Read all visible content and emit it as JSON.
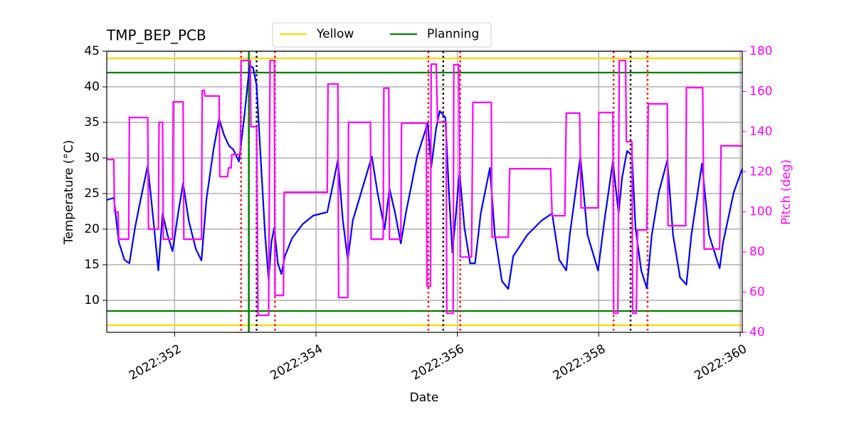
{
  "chart_data": {
    "type": "line",
    "title": "TMP_BEP_PCB",
    "xlabel": "Date",
    "ylabel": "Temperature (°C)",
    "y2label": "Pitch (deg)",
    "y2color": "#ff00ff",
    "xlim": [
      351.04,
      360.03
    ],
    "xticks": [
      {
        "value": 352,
        "label": "2022:352"
      },
      {
        "value": 354,
        "label": "2022:354"
      },
      {
        "value": 356,
        "label": "2022:356"
      },
      {
        "value": 358,
        "label": "2022:358"
      },
      {
        "value": 360,
        "label": "2022:360"
      }
    ],
    "ylim": [
      5.5,
      45
    ],
    "yticks": [
      10,
      15,
      20,
      25,
      30,
      35,
      40,
      45
    ],
    "y2lim": [
      40,
      180
    ],
    "y2ticks": [
      40,
      60,
      80,
      100,
      120,
      140,
      160,
      180
    ],
    "grid": true,
    "legend": "top-center",
    "series": [
      {
        "color": "#0000ff",
        "x": [
          351.04,
          351.14,
          351.21,
          351.29,
          351.36,
          351.44,
          351.54,
          351.62,
          351.7,
          351.77,
          351.83,
          351.9,
          351.97,
          352.05,
          352.12,
          352.2,
          352.3,
          352.38,
          352.45,
          352.55,
          352.63,
          352.7,
          352.77,
          352.83,
          352.91,
          352.99,
          353.06,
          353.11,
          353.16,
          353.21,
          353.28,
          353.33,
          353.37,
          353.41,
          353.46,
          353.51,
          353.56,
          353.66,
          353.81,
          353.96,
          354.16,
          354.31,
          354.38,
          354.45,
          354.52,
          354.67,
          354.79,
          354.87,
          354.97,
          355.04,
          355.12,
          355.2,
          355.27,
          355.43,
          355.58,
          355.63,
          355.7,
          355.75,
          355.83,
          355.88,
          355.93,
          355.98,
          356.03,
          356.1,
          356.18,
          356.25,
          356.33,
          356.46,
          356.53,
          356.63,
          356.72,
          356.79,
          356.99,
          357.19,
          357.34,
          357.44,
          357.54,
          357.59,
          357.74,
          357.84,
          357.99,
          358.08,
          358.2,
          358.28,
          358.33,
          358.4,
          358.47,
          358.52,
          358.6,
          358.68,
          358.75,
          358.85,
          358.97,
          359.05,
          359.15,
          359.24,
          359.31,
          359.46,
          359.56,
          359.71,
          359.76,
          359.91,
          360.03
        ],
        "values": [
          24.1,
          24.4,
          18.2,
          15.7,
          15.2,
          20.2,
          25.2,
          28.9,
          21.2,
          14.2,
          22.2,
          19.2,
          16.9,
          22.2,
          26.5,
          21.2,
          17.2,
          15.6,
          24.2,
          31.2,
          35.5,
          33.2,
          31.7,
          31.2,
          29.5,
          36.2,
          43,
          42.7,
          40.2,
          31.2,
          19.2,
          12.9,
          18.2,
          20.2,
          15.2,
          13.7,
          16.2,
          18.7,
          20.7,
          21.9,
          22.4,
          29.7,
          21.2,
          15.7,
          21.2,
          26.2,
          30.2,
          25.2,
          20,
          25.7,
          22.2,
          18,
          22.2,
          30.2,
          34.9,
          28.7,
          34.2,
          36.6,
          35.7,
          25.2,
          16.7,
          22.2,
          28,
          20.2,
          15.2,
          15.2,
          22.2,
          28.6,
          19.2,
          12.7,
          11.6,
          16.2,
          19.2,
          21.2,
          22.2,
          15.7,
          14.2,
          19.2,
          30.2,
          19.2,
          14.2,
          21.2,
          29.5,
          22.2,
          27.2,
          31,
          30.4,
          20.2,
          14.2,
          11.7,
          19.2,
          25.2,
          29.7,
          19.2,
          13.2,
          12.2,
          19.2,
          29.2,
          19.2,
          14.5,
          18.2,
          25.2,
          28.5
        ]
      },
      {
        "color": "#ff00ff",
        "axis": "y2",
        "x": [
          351.04,
          351.14,
          351.15,
          351.2,
          351.21,
          351.35,
          351.36,
          351.62,
          351.63,
          351.77,
          351.78,
          351.83,
          351.84,
          351.97,
          351.98,
          352.12,
          352.13,
          352.38,
          352.39,
          352.42,
          352.43,
          352.63,
          352.64,
          352.75,
          352.76,
          352.8,
          352.81,
          352.93,
          352.94,
          353.07,
          353.08,
          353.16,
          353.18,
          353.33,
          353.35,
          353.41,
          353.42,
          353.54,
          353.55,
          354.16,
          354.17,
          354.31,
          354.32,
          354.45,
          354.46,
          354.77,
          354.78,
          354.95,
          354.96,
          355.03,
          355.04,
          355.2,
          355.21,
          355.56,
          355.57,
          355.62,
          355.63,
          355.7,
          355.72,
          355.84,
          355.85,
          355.94,
          355.95,
          356.02,
          356.04,
          356.2,
          356.22,
          356.48,
          356.49,
          356.72,
          356.74,
          357.32,
          357.34,
          357.52,
          357.54,
          357.73,
          357.75,
          357.99,
          358.0,
          358.2,
          358.21,
          358.27,
          358.29,
          358.38,
          358.39,
          358.47,
          358.48,
          358.53,
          358.55,
          358.68,
          358.7,
          358.97,
          358.98,
          359.23,
          359.24,
          359.47,
          359.49,
          359.71,
          359.73,
          360.03
        ],
        "values": [
          126.1,
          126.1,
          99.9,
          99.9,
          86.4,
          86.4,
          147,
          147,
          91.4,
          91.4,
          144.6,
          144.6,
          86.4,
          86.4,
          154.8,
          154.8,
          86.4,
          86.4,
          160.5,
          160.5,
          157.7,
          157.7,
          117.6,
          117.6,
          121.9,
          121.9,
          128.6,
          128.6,
          175.4,
          175.4,
          142.4,
          142.4,
          48.5,
          48.5,
          175.4,
          175.4,
          58.4,
          58.4,
          109.8,
          109.8,
          163.7,
          163.7,
          57.3,
          57.3,
          144.6,
          144.6,
          86.4,
          86.4,
          161.6,
          161.6,
          86.4,
          86.4,
          144.2,
          144.2,
          63,
          63,
          173.6,
          173.6,
          144.6,
          144.6,
          49.5,
          49.5,
          173.3,
          173.3,
          77.5,
          77.5,
          154.5,
          154.5,
          87.4,
          87.4,
          121.5,
          121.5,
          98.1,
          98.1,
          149.2,
          149.2,
          102,
          102,
          149.5,
          149.5,
          49.5,
          49.5,
          175.4,
          175.4,
          135,
          135,
          49.5,
          49.5,
          91,
          91,
          153.8,
          153.8,
          93.1,
          93.1,
          161.9,
          161.9,
          81.5,
          81.5,
          132.9,
          132.9
        ]
      }
    ],
    "hlines": [
      {
        "name": "Yellow",
        "color": "#ffd700",
        "values": [
          44,
          6.5
        ]
      },
      {
        "name": "Planning",
        "color": "#008000",
        "values": [
          42,
          8.5
        ]
      }
    ],
    "vlines": [
      {
        "color": "#ff0000",
        "style": "dotted",
        "x": [
          352.94,
          353.42,
          355.59,
          356.04,
          358.21,
          358.69
        ]
      },
      {
        "color": "#000000",
        "style": "dotted",
        "x": [
          353.16,
          355.8,
          358.45
        ]
      },
      {
        "color": "#008000",
        "style": "solid",
        "x": [
          353.05
        ]
      }
    ]
  }
}
